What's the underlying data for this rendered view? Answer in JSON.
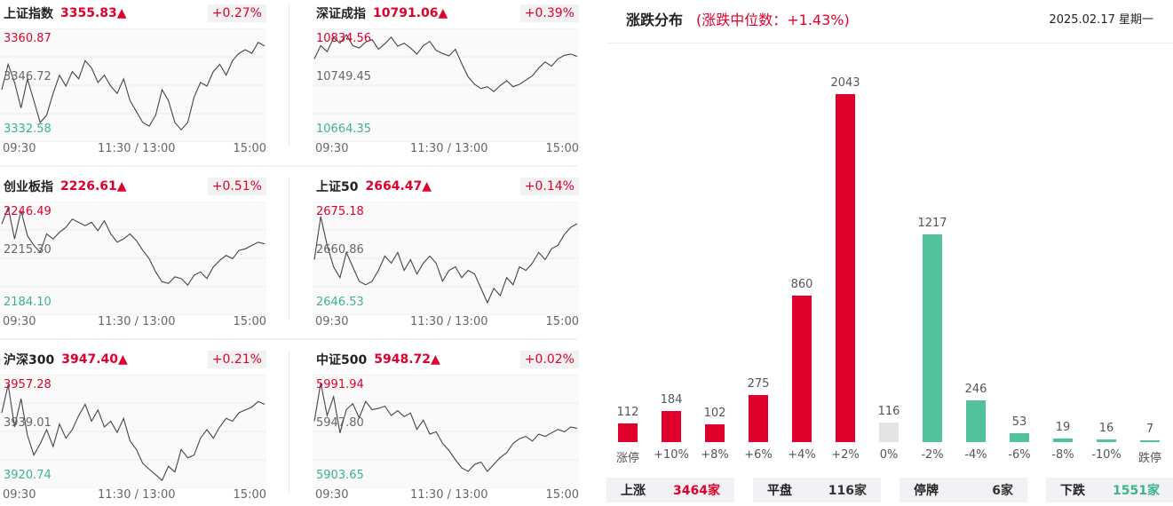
{
  "panels": [
    {
      "name": "上证指数",
      "value": "3355.83▲",
      "change": "+0.27%",
      "ymax": "3360.87",
      "ymid": "3346.72",
      "ymin": "3332.58",
      "times": [
        "09:30",
        "11:30 / 13:00",
        "15:00"
      ],
      "series": [
        3345,
        3352,
        3347,
        3340,
        3348,
        3342,
        3336,
        3338,
        3344,
        3349,
        3346,
        3350,
        3348,
        3353,
        3351,
        3347,
        3349,
        3346,
        3344,
        3348,
        3342,
        3339,
        3336,
        3335,
        3338,
        3345,
        3342,
        3336,
        3334,
        3336,
        3343,
        3347,
        3346,
        3350,
        3352,
        3349,
        3353,
        3355,
        3356,
        3355,
        3358,
        3357
      ]
    },
    {
      "name": "深证成指",
      "value": "10791.06▲",
      "change": "+0.39%",
      "ymax": "10834.56",
      "ymid": "10749.45",
      "ymin": "10664.35",
      "times": [
        "09:30",
        "11:30 / 13:00",
        "15:00"
      ],
      "series": [
        10790,
        10812,
        10802,
        10825,
        10816,
        10830,
        10812,
        10808,
        10818,
        10822,
        10806,
        10815,
        10826,
        10811,
        10816,
        10808,
        10798,
        10812,
        10819,
        10804,
        10799,
        10795,
        10806,
        10782,
        10760,
        10748,
        10741,
        10744,
        10736,
        10746,
        10754,
        10744,
        10748,
        10755,
        10762,
        10775,
        10785,
        10778,
        10790,
        10796,
        10798,
        10794
      ]
    },
    {
      "name": "创业板指",
      "value": "2226.61▲",
      "change": "+0.51%",
      "ymax": "2246.49",
      "ymid": "2215.30",
      "ymin": "2184.10",
      "times": [
        "09:30",
        "11:30 / 13:00",
        "15:00"
      ],
      "series": [
        2235,
        2245,
        2226,
        2243,
        2228,
        2222,
        2218,
        2229,
        2226,
        2230,
        2233,
        2238,
        2236,
        2234,
        2236,
        2231,
        2237,
        2229,
        2224,
        2226,
        2229,
        2225,
        2219,
        2214,
        2206,
        2200,
        2199,
        2203,
        2202,
        2198,
        2204,
        2206,
        2202,
        2209,
        2213,
        2216,
        2214,
        2219,
        2220,
        2222,
        2224,
        2223
      ]
    },
    {
      "name": "上证50",
      "value": "2664.47▲",
      "change": "+0.14%",
      "ymax": "2675.18",
      "ymid": "2660.86",
      "ymin": "2646.53",
      "times": [
        "09:30",
        "11:30 / 13:00",
        "15:00"
      ],
      "series": [
        2660,
        2672,
        2664,
        2658,
        2655,
        2662,
        2658,
        2654,
        2653,
        2654,
        2657,
        2661,
        2659,
        2662,
        2657,
        2660,
        2656,
        2659,
        2661,
        2659,
        2654,
        2657,
        2658,
        2655,
        2657,
        2656,
        2652,
        2648,
        2652,
        2650,
        2655,
        2653,
        2658,
        2657,
        2659,
        2662,
        2660,
        2663,
        2664,
        2667,
        2669,
        2670
      ]
    },
    {
      "name": "沪深300",
      "value": "3947.40▲",
      "change": "+0.21%",
      "ymax": "3957.28",
      "ymid": "3939.01",
      "ymin": "3920.74",
      "times": [
        "09:30",
        "11:30 / 13:00",
        "15:00"
      ],
      "series": [
        3945,
        3955,
        3940,
        3950,
        3937,
        3930,
        3934,
        3939,
        3933,
        3941,
        3936,
        3939,
        3944,
        3948,
        3942,
        3946,
        3940,
        3942,
        3938,
        3943,
        3935,
        3932,
        3927,
        3925,
        3923,
        3921,
        3926,
        3924,
        3932,
        3929,
        3930,
        3936,
        3939,
        3936,
        3940,
        3943,
        3942,
        3945,
        3946,
        3947,
        3949,
        3948
      ]
    },
    {
      "name": "中证500",
      "value": "5948.72▲",
      "change": "+0.02%",
      "ymax": "5991.94",
      "ymid": "5947.80",
      "ymin": "5903.65",
      "times": [
        "09:30",
        "11:30 / 13:00",
        "15:00"
      ],
      "series": [
        5955,
        5988,
        5960,
        5976,
        5945,
        5965,
        5970,
        5958,
        5972,
        5965,
        5966,
        5968,
        5960,
        5964,
        5959,
        5962,
        5948,
        5956,
        5944,
        5946,
        5936,
        5930,
        5922,
        5915,
        5912,
        5918,
        5920,
        5912,
        5918,
        5924,
        5928,
        5936,
        5940,
        5942,
        5938,
        5944,
        5942,
        5945,
        5948,
        5946,
        5950,
        5949
      ]
    }
  ],
  "distribution": {
    "title": "涨跌分布",
    "subtitle": "(涨跌中位数：+1.43%)",
    "date": "2025.02.17 星期一",
    "up_color": "#e0002b",
    "down_color": "#52c29b",
    "flat_color": "#e3e3e3",
    "chart_data": {
      "type": "bar",
      "categories": [
        "涨停",
        "+10%",
        "+8%",
        "+6%",
        "+4%",
        "+2%",
        "0%",
        "-2%",
        "-4%",
        "-6%",
        "-8%",
        "-10%",
        "跌停"
      ],
      "values": [
        112,
        184,
        102,
        275,
        860,
        2043,
        116,
        1217,
        246,
        53,
        19,
        16,
        7
      ],
      "value_labels": [
        "112",
        "184",
        "102",
        "275",
        "860",
        "2043",
        "116",
        "1217",
        "246",
        "53",
        "19",
        "16",
        "7"
      ],
      "kinds": [
        "up",
        "up",
        "up",
        "up",
        "up",
        "up",
        "flat",
        "down",
        "down",
        "down",
        "down",
        "down",
        "down"
      ]
    },
    "summary": [
      {
        "label": "上涨",
        "value": "3464家",
        "color": "#e0002b"
      },
      {
        "label": "平盘",
        "value": "116家",
        "color": "#333333"
      },
      {
        "label": "停牌",
        "value": "6家",
        "color": "#333333"
      },
      {
        "label": "下跌",
        "value": "1551家",
        "color": "#3cb48a"
      }
    ]
  }
}
